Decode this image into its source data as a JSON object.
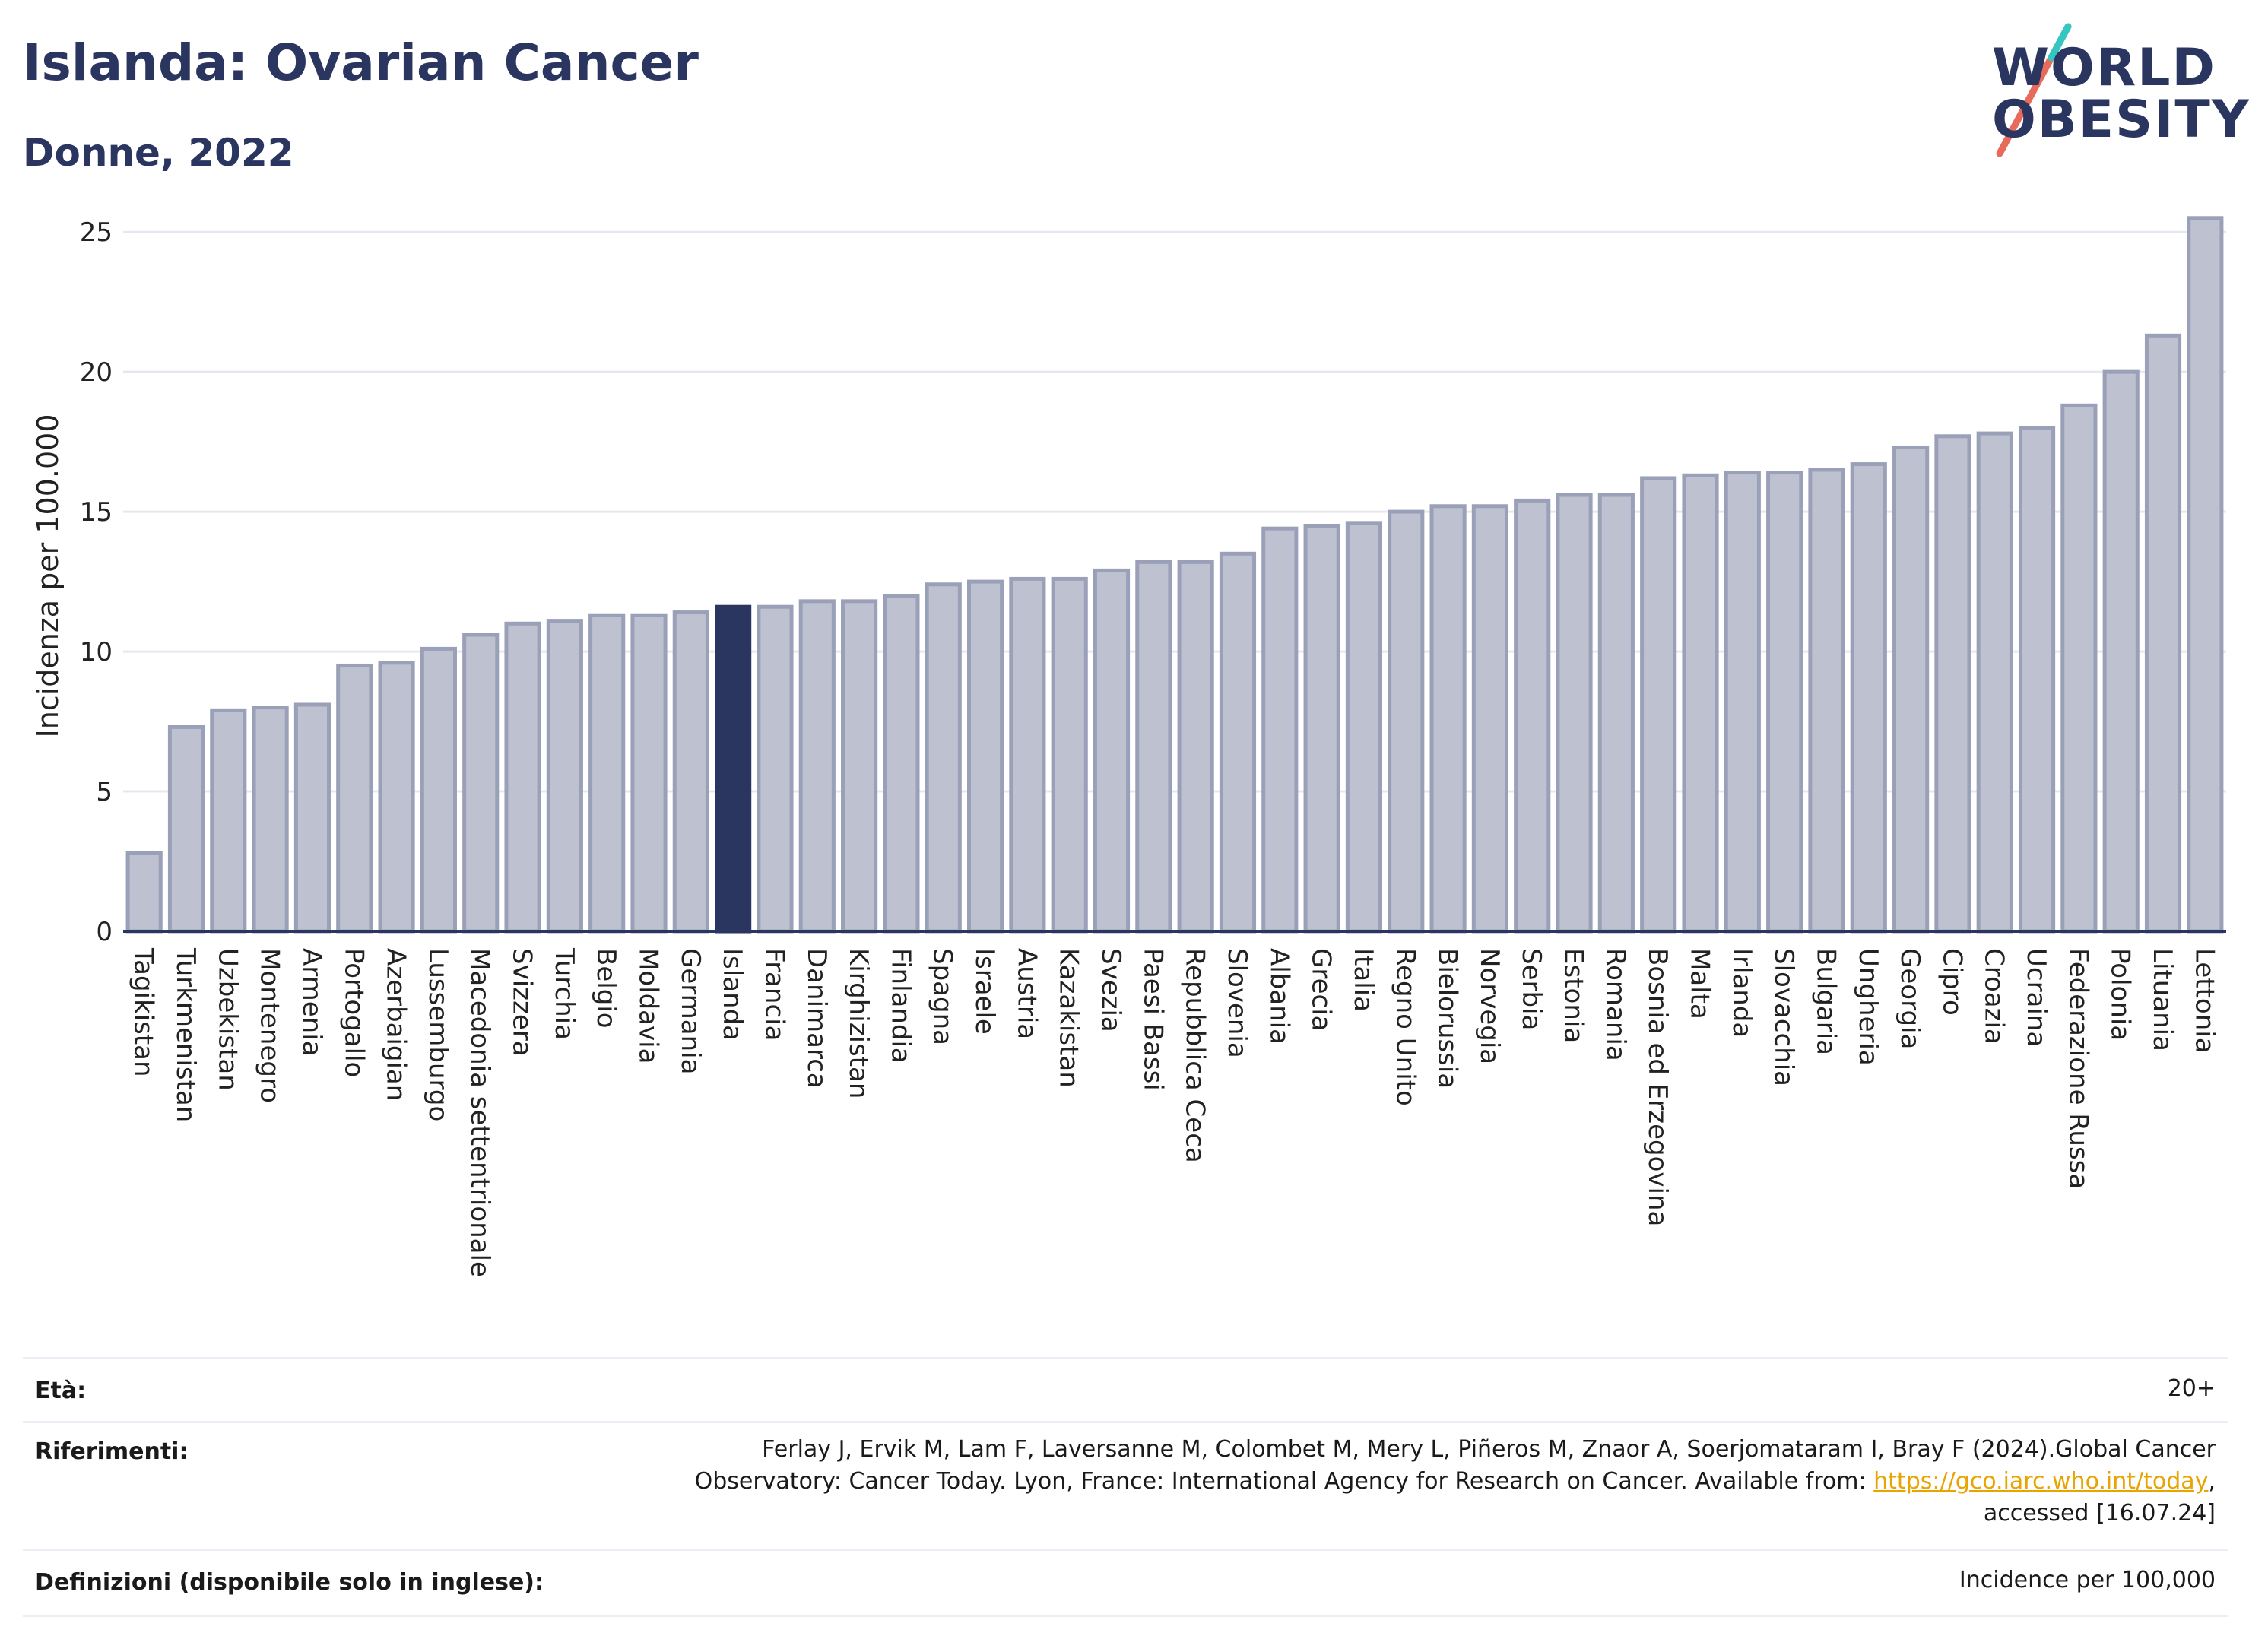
{
  "header": {
    "title": "Islanda: Ovarian Cancer",
    "subtitle": "Donne, 2022"
  },
  "logo": {
    "line1": "WORLD",
    "line2": "OBESITY",
    "colors": [
      "#2a3560",
      "#e86a5a",
      "#34c6c0"
    ]
  },
  "chart_data": {
    "type": "bar",
    "ylabel": "Incidenza per 100.000",
    "xlabel": "",
    "ylim": [
      0,
      26.5
    ],
    "yticks": [
      0,
      5,
      10,
      15,
      20,
      25
    ],
    "grid": true,
    "highlight": "Islanda",
    "colors": {
      "bar": "#bec2d0",
      "bar_edge": "#9aa0b8",
      "highlight": "#2a3560"
    },
    "categories": [
      "Tagikistan",
      "Turkmenistan",
      "Uzbekistan",
      "Montenegro",
      "Armenia",
      "Portogallo",
      "Azerbaigian",
      "Lussemburgo",
      "Macedonia settentrionale",
      "Svizzera",
      "Turchia",
      "Belgio",
      "Moldavia",
      "Germania",
      "Islanda",
      "Francia",
      "Danimarca",
      "Kirghizistan",
      "Finlandia",
      "Spagna",
      "Israele",
      "Austria",
      "Kazakistan",
      "Svezia",
      "Paesi Bassi",
      "Repubblica Ceca",
      "Slovenia",
      "Albania",
      "Grecia",
      "Italia",
      "Regno Unito",
      "Bielorussia",
      "Norvegia",
      "Serbia",
      "Estonia",
      "Romania",
      "Bosnia ed Erzegovina",
      "Malta",
      "Irlanda",
      "Slovacchia",
      "Bulgaria",
      "Ungheria",
      "Georgia",
      "Cipro",
      "Croazia",
      "Ucraina",
      "Federazione Russa",
      "Polonia",
      "Lituania",
      "Lettonia"
    ],
    "values": [
      2.8,
      7.3,
      7.9,
      8.0,
      8.1,
      9.5,
      9.6,
      10.1,
      10.6,
      11.0,
      11.1,
      11.3,
      11.3,
      11.4,
      11.6,
      11.6,
      11.8,
      11.8,
      12.0,
      12.4,
      12.5,
      12.6,
      12.6,
      12.9,
      13.2,
      13.2,
      13.5,
      14.4,
      14.5,
      14.6,
      15.0,
      15.2,
      15.2,
      15.4,
      15.6,
      15.6,
      16.2,
      16.3,
      16.4,
      16.4,
      16.5,
      16.7,
      17.3,
      17.7,
      17.8,
      18.0,
      18.8,
      20.0,
      21.3,
      25.5
    ]
  },
  "info": {
    "age_label": "Età:",
    "age_value": "20+",
    "refs_label": "Riferimenti:",
    "refs_line1": "Ferlay J, Ervik M, Lam F, Laversanne M, Colombet M, Mery L, Piñeros M, Znaor A, Soerjomataram I, Bray F (2024).Global Cancer",
    "refs_line2_pre": "Observatory: Cancer Today. Lyon, France: International Agency for Research on Cancer. Available from: ",
    "refs_link": "https://gco.iarc.who.int/today",
    "refs_line2_post": ",",
    "refs_line3": "accessed [16.07.24]",
    "defs_label": "Definizioni (disponibile solo in inglese):",
    "defs_value": "Incidence per 100,000"
  }
}
